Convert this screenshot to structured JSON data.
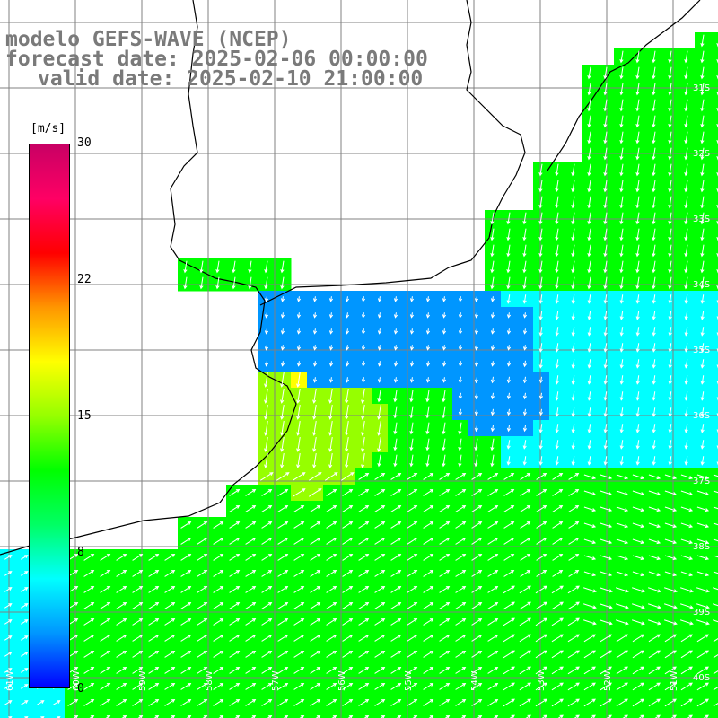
{
  "titles": {
    "line1": "modelo GEFS-WAVE (NCEP)",
    "line2": "forecast date: 2025-02-06 00:00:00",
    "line3": "valid date: 2025-02-10 21:00:00"
  },
  "colorbar": {
    "unit_label": "[m/s]",
    "ticks": [
      "30",
      "22",
      "15",
      "8",
      "0"
    ],
    "colors": [
      "#0000ff",
      "#0096ff",
      "#00ffff",
      "#00ff64",
      "#00ff00",
      "#96ff00",
      "#ffff00",
      "#ff9600",
      "#ff0000",
      "#ff0064",
      "#c80064"
    ]
  },
  "axes": {
    "lat_labels": [
      "31S",
      "32S",
      "33S",
      "34S",
      "35S",
      "36S",
      "37S",
      "38S",
      "39S",
      "40S",
      "41S"
    ],
    "lon_labels": [
      "61W",
      "60W",
      "59W",
      "58W",
      "57W",
      "56W",
      "55W",
      "54W",
      "53W",
      "52W",
      "51W"
    ]
  },
  "palette": {
    "land": "#ffffff",
    "coast": "#000000",
    "grid": "#808080",
    "arrow": "#ffffff"
  }
}
